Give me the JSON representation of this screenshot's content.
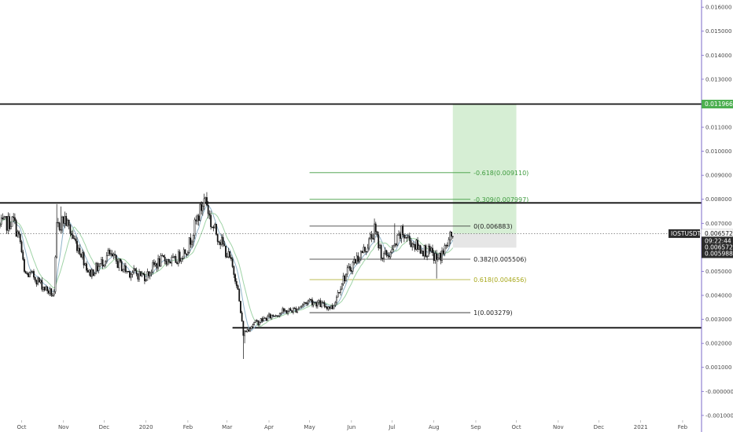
{
  "chart_data": {
    "type": "candlestick",
    "symbol": "IOSTUSDT",
    "colors": {
      "candle": "#111111",
      "ma_fast": "#8fb3c9",
      "ma_slow": "#9fd3a6",
      "fib_green": "#3e9b3e",
      "fib_olive": "#a8a81c",
      "fib_dark": "#222222",
      "target_zone": "#d6eed4",
      "stop_zone": "#e6e6e6",
      "tag_green": "#4caf50",
      "tag_dark": "#2b2b2b",
      "axis_line": "#7b68c8"
    },
    "y_axis": {
      "min": -0.0012,
      "max": 0.0163,
      "tick_values": [
        0.016,
        0.015,
        0.014,
        0.013,
        0.012,
        0.011,
        0.01,
        0.009,
        0.008,
        0.007,
        0.006,
        0.005,
        0.004,
        0.003,
        0.002,
        0.001,
        0.0,
        -0.001
      ],
      "tick_labels": [
        "0.016000",
        "0.015000",
        "0.014000",
        "0.013000",
        "0.012000",
        "0.011000",
        "0.010000",
        "0.009000",
        "0.008000",
        "0.007000",
        "0.006000",
        "0.005000",
        "0.004000",
        "0.003000",
        "0.002000",
        "0.001000",
        "-0.000000",
        "-0.001000"
      ]
    },
    "x_axis": {
      "start": "2019-09-15",
      "end": "2021-02-15",
      "ticks": [
        {
          "date": "2019-10-01",
          "label": "Oct"
        },
        {
          "date": "2019-11-01",
          "label": "Nov"
        },
        {
          "date": "2019-12-01",
          "label": "Dec"
        },
        {
          "date": "2020-01-01",
          "label": "2020"
        },
        {
          "date": "2020-02-01",
          "label": "Feb"
        },
        {
          "date": "2020-03-01",
          "label": "Mar"
        },
        {
          "date": "2020-04-01",
          "label": "Apr"
        },
        {
          "date": "2020-05-01",
          "label": "May"
        },
        {
          "date": "2020-06-01",
          "label": "Jun"
        },
        {
          "date": "2020-07-01",
          "label": "Jul"
        },
        {
          "date": "2020-08-01",
          "label": "Aug"
        },
        {
          "date": "2020-09-01",
          "label": "Sep"
        },
        {
          "date": "2020-10-01",
          "label": "Oct"
        },
        {
          "date": "2020-11-01",
          "label": "Nov"
        },
        {
          "date": "2020-12-01",
          "label": "Dec"
        },
        {
          "date": "2021-01-01",
          "label": "2021"
        },
        {
          "date": "2021-02-01",
          "label": "Feb"
        }
      ]
    },
    "price_path": [
      {
        "date": "2019-09-15",
        "value": 0.0069
      },
      {
        "date": "2019-09-20",
        "value": 0.007
      },
      {
        "date": "2019-09-25",
        "value": 0.0071
      },
      {
        "date": "2019-09-30",
        "value": 0.0062
      },
      {
        "date": "2019-10-03",
        "value": 0.0049
      },
      {
        "date": "2019-10-10",
        "value": 0.0048
      },
      {
        "date": "2019-10-18",
        "value": 0.0043
      },
      {
        "date": "2019-10-25",
        "value": 0.004
      },
      {
        "date": "2019-10-27",
        "value": 0.0068
      },
      {
        "date": "2019-11-02",
        "value": 0.0072
      },
      {
        "date": "2019-11-08",
        "value": 0.0064
      },
      {
        "date": "2019-11-14",
        "value": 0.0058
      },
      {
        "date": "2019-11-20",
        "value": 0.0049
      },
      {
        "date": "2019-11-27",
        "value": 0.0052
      },
      {
        "date": "2019-12-04",
        "value": 0.0057
      },
      {
        "date": "2019-12-10",
        "value": 0.0054
      },
      {
        "date": "2019-12-18",
        "value": 0.005
      },
      {
        "date": "2019-12-25",
        "value": 0.0049
      },
      {
        "date": "2020-01-01",
        "value": 0.0048
      },
      {
        "date": "2020-01-08",
        "value": 0.0053
      },
      {
        "date": "2020-01-15",
        "value": 0.0055
      },
      {
        "date": "2020-01-22",
        "value": 0.0054
      },
      {
        "date": "2020-02-01",
        "value": 0.006
      },
      {
        "date": "2020-02-08",
        "value": 0.0072
      },
      {
        "date": "2020-02-14",
        "value": 0.0081
      },
      {
        "date": "2020-02-18",
        "value": 0.007
      },
      {
        "date": "2020-02-25",
        "value": 0.0063
      },
      {
        "date": "2020-03-03",
        "value": 0.0055
      },
      {
        "date": "2020-03-08",
        "value": 0.0046
      },
      {
        "date": "2020-03-13",
        "value": 0.0024
      },
      {
        "date": "2020-03-20",
        "value": 0.0028
      },
      {
        "date": "2020-04-01",
        "value": 0.0031
      },
      {
        "date": "2020-04-10",
        "value": 0.0033
      },
      {
        "date": "2020-04-20",
        "value": 0.0034
      },
      {
        "date": "2020-05-01",
        "value": 0.0038
      },
      {
        "date": "2020-05-10",
        "value": 0.0036
      },
      {
        "date": "2020-05-18",
        "value": 0.0035
      },
      {
        "date": "2020-05-25",
        "value": 0.0046
      },
      {
        "date": "2020-06-03",
        "value": 0.0054
      },
      {
        "date": "2020-06-12",
        "value": 0.006
      },
      {
        "date": "2020-06-18",
        "value": 0.0067
      },
      {
        "date": "2020-06-24",
        "value": 0.0056
      },
      {
        "date": "2020-07-01",
        "value": 0.0058
      },
      {
        "date": "2020-07-08",
        "value": 0.0066
      },
      {
        "date": "2020-07-14",
        "value": 0.0063
      },
      {
        "date": "2020-07-20",
        "value": 0.006
      },
      {
        "date": "2020-07-28",
        "value": 0.0058
      },
      {
        "date": "2020-08-04",
        "value": 0.0055
      },
      {
        "date": "2020-08-10",
        "value": 0.006
      },
      {
        "date": "2020-08-15",
        "value": 0.0066
      }
    ],
    "levels": [
      {
        "name": "resistance-top",
        "value": 0.011966,
        "color": "#111111",
        "width": 1.8
      },
      {
        "name": "resistance-mid",
        "value": 0.00785,
        "color": "#111111",
        "width": 1.8
      },
      {
        "name": "support-bottom",
        "value": 0.00265,
        "color": "#111111",
        "width": 1.8
      }
    ],
    "fib_levels": [
      {
        "label": "-0.618(0.009110)",
        "value": 0.00911,
        "color": "#3e9b3e"
      },
      {
        "label": "-0.309(0.007997)",
        "value": 0.007997,
        "color": "#3e9b3e"
      },
      {
        "label": "0(0.006883)",
        "value": 0.006883,
        "color": "#222222"
      },
      {
        "label": "0.382(0.005506)",
        "value": 0.005506,
        "color": "#222222"
      },
      {
        "label": "0.618(0.004656)",
        "value": 0.004656,
        "color": "#a8a81c"
      },
      {
        "label": "1(0.003279)",
        "value": 0.003279,
        "color": "#222222"
      }
    ],
    "fib_start_date": "2020-05-01",
    "fib_end_date": "2020-08-28",
    "last_price": 0.006572,
    "position": {
      "start_date": "2020-08-15",
      "end_date": "2020-10-01",
      "entry": 0.006572,
      "target": 0.011966,
      "stop": 0.005988
    },
    "price_tags": [
      {
        "label": "0.011966",
        "value": 0.011966,
        "style": "green"
      },
      {
        "label": "IOSTUSDT",
        "value": 0.006572,
        "style": "symbol"
      },
      {
        "label": "0.006572",
        "value": 0.006572,
        "style": "plain"
      },
      {
        "label": "09:22:44",
        "value": 0.006265,
        "style": "dark"
      },
      {
        "label": "0.006572",
        "value": 0.006,
        "style": "dark"
      },
      {
        "label": "0.005988",
        "value": 0.005735,
        "style": "dark"
      }
    ]
  }
}
